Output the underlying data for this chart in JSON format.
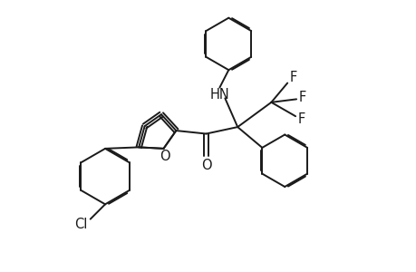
{
  "bg_color": "#ffffff",
  "line_color": "#1a1a1a",
  "line_width": 1.4,
  "font_size": 10.5,
  "fig_width": 4.6,
  "fig_height": 3.0,
  "dpi": 100,
  "xlim": [
    0,
    9.2
  ],
  "ylim": [
    0,
    6.0
  ]
}
